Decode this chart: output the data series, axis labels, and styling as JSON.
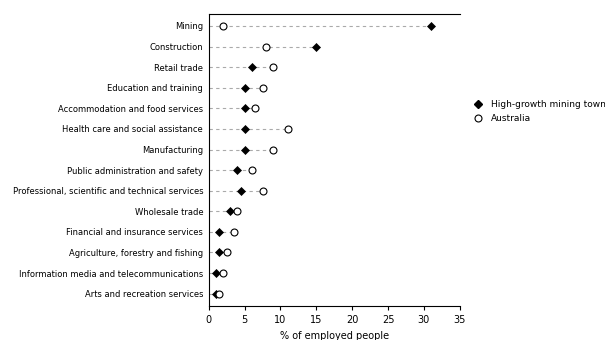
{
  "categories": [
    "Mining",
    "Construction",
    "Retail trade",
    "Education and training",
    "Accommodation and food services",
    "Health care and social assistance",
    "Manufacturing",
    "Public administration and safety",
    "Professional, scientific and technical services",
    "Wholesale trade",
    "Financial and insurance services",
    "Agriculture, forestry and fishing",
    "Information media and telecommunications",
    "Arts and recreation services"
  ],
  "mining_towns": [
    31.0,
    15.0,
    6.0,
    5.0,
    5.0,
    5.0,
    5.0,
    4.0,
    4.5,
    3.0,
    1.5,
    1.5,
    1.0,
    1.0
  ],
  "australia": [
    2.0,
    8.0,
    9.0,
    7.5,
    6.5,
    11.0,
    9.0,
    6.0,
    7.5,
    4.0,
    3.5,
    2.5,
    2.0,
    1.5
  ],
  "xlabel": "% of employed people",
  "xlim": [
    0,
    35
  ],
  "xticks": [
    0,
    5,
    10,
    15,
    20,
    25,
    30,
    35
  ],
  "mining_color": "#000000",
  "australia_color": "#000000",
  "line_color": "#aaaaaa",
  "legend_mining": "High-growth mining towns",
  "legend_australia": "Australia",
  "figure_bg": "#ffffff",
  "axes_bg": "#ffffff"
}
